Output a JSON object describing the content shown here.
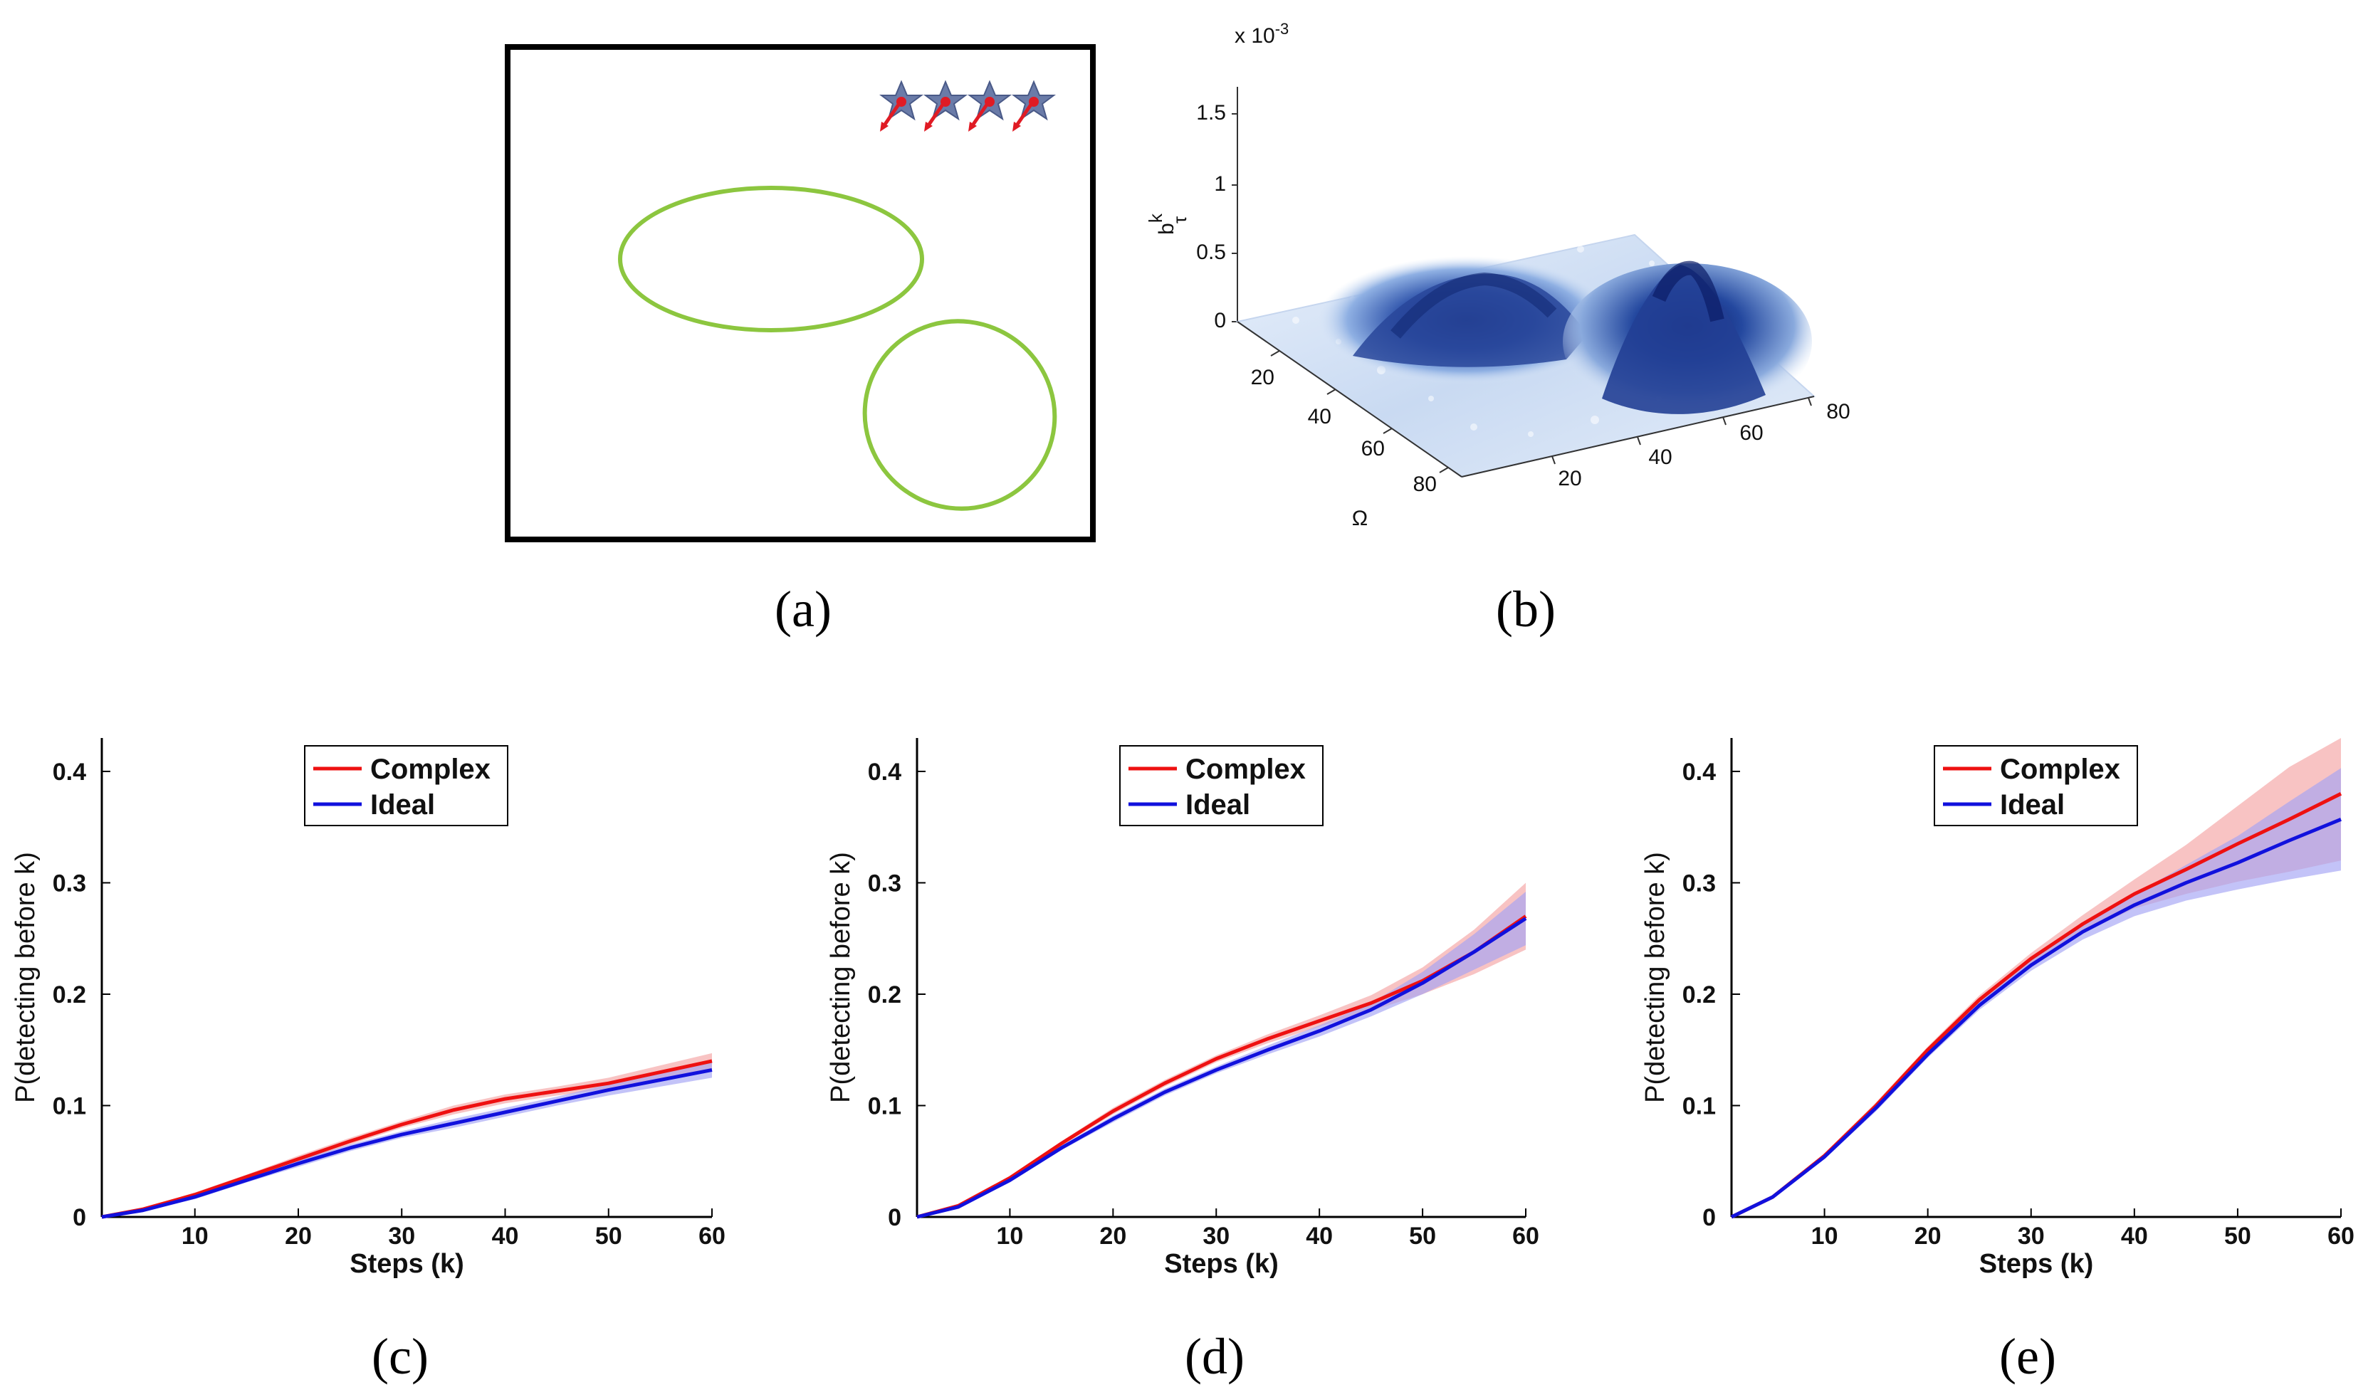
{
  "panels": {
    "a": "(a)",
    "b": "(b)",
    "c": "(c)",
    "d": "(d)",
    "e": "(e)"
  },
  "surface": {
    "zlabel": "b",
    "zlabel_sup": "k",
    "zlabel_sub": "τ",
    "exponent": "x 10",
    "exponent_sup": "-3",
    "zticks": [
      "0",
      "0.5",
      "1",
      "1.5"
    ],
    "y_ticks": [
      "20",
      "40",
      "60",
      "80"
    ],
    "x_ticks": [
      "20",
      "40",
      "60",
      "80"
    ],
    "omega_label": "Ω"
  },
  "colors": {
    "complex": "#ee1111",
    "ideal": "#1111dd",
    "complex_band": "#f5a3a3",
    "ideal_band": "#a3a3f5",
    "ellipse": "#8cc63f",
    "target": "#e01b24"
  },
  "chart_data": [
    {
      "type": "line",
      "id": "c",
      "xlabel": "Steps (k)",
      "ylabel": "P(detecting before k)",
      "xlim": [
        1,
        60
      ],
      "ylim": [
        0,
        0.43
      ],
      "xticks": [
        10,
        20,
        30,
        40,
        50,
        60
      ],
      "yticks": [
        0,
        0.1,
        0.2,
        0.3,
        0.4
      ],
      "x": [
        1,
        5,
        10,
        15,
        20,
        25,
        30,
        35,
        40,
        45,
        50,
        55,
        60
      ],
      "series": [
        {
          "name": "Complex",
          "values": [
            0,
            0.007,
            0.02,
            0.036,
            0.052,
            0.068,
            0.083,
            0.096,
            0.106,
            0.113,
            0.12,
            0.13,
            0.14
          ],
          "band": [
            0,
            0.001,
            0.002,
            0.002,
            0.003,
            0.003,
            0.003,
            0.004,
            0.004,
            0.004,
            0.005,
            0.006,
            0.007
          ]
        },
        {
          "name": "Ideal",
          "values": [
            0,
            0.006,
            0.018,
            0.033,
            0.048,
            0.062,
            0.074,
            0.084,
            0.094,
            0.104,
            0.114,
            0.123,
            0.132
          ],
          "band": [
            0,
            0.001,
            0.002,
            0.002,
            0.003,
            0.003,
            0.003,
            0.004,
            0.004,
            0.004,
            0.005,
            0.006,
            0.007
          ]
        }
      ]
    },
    {
      "type": "line",
      "id": "d",
      "xlabel": "Steps (k)",
      "ylabel": "P(detecting before k)",
      "xlim": [
        1,
        60
      ],
      "ylim": [
        0,
        0.43
      ],
      "xticks": [
        10,
        20,
        30,
        40,
        50,
        60
      ],
      "yticks": [
        0,
        0.1,
        0.2,
        0.3,
        0.4
      ],
      "x": [
        1,
        5,
        10,
        15,
        20,
        25,
        30,
        35,
        40,
        45,
        50,
        55,
        60
      ],
      "series": [
        {
          "name": "Complex",
          "values": [
            0,
            0.01,
            0.035,
            0.066,
            0.095,
            0.12,
            0.142,
            0.16,
            0.176,
            0.192,
            0.212,
            0.238,
            0.27
          ],
          "band": [
            0,
            0.001,
            0.002,
            0.002,
            0.003,
            0.003,
            0.003,
            0.004,
            0.005,
            0.007,
            0.012,
            0.02,
            0.03
          ]
        },
        {
          "name": "Ideal",
          "values": [
            0,
            0.009,
            0.033,
            0.062,
            0.088,
            0.112,
            0.132,
            0.15,
            0.167,
            0.186,
            0.21,
            0.238,
            0.268
          ],
          "band": [
            0,
            0.001,
            0.002,
            0.002,
            0.003,
            0.003,
            0.003,
            0.004,
            0.005,
            0.006,
            0.01,
            0.016,
            0.024
          ]
        }
      ]
    },
    {
      "type": "line",
      "id": "e",
      "xlabel": "Steps (k)",
      "ylabel": "P(detecting before k)",
      "xlim": [
        1,
        60
      ],
      "ylim": [
        0,
        0.43
      ],
      "xticks": [
        10,
        20,
        30,
        40,
        50,
        60
      ],
      "yticks": [
        0,
        0.1,
        0.2,
        0.3,
        0.4
      ],
      "x": [
        1,
        5,
        10,
        15,
        20,
        25,
        30,
        35,
        40,
        45,
        50,
        55,
        60
      ],
      "series": [
        {
          "name": "Complex",
          "values": [
            0,
            0.018,
            0.055,
            0.1,
            0.15,
            0.195,
            0.232,
            0.263,
            0.29,
            0.312,
            0.335,
            0.357,
            0.38
          ],
          "band": [
            0,
            0.001,
            0.002,
            0.003,
            0.003,
            0.004,
            0.005,
            0.008,
            0.013,
            0.022,
            0.034,
            0.047,
            0.06
          ]
        },
        {
          "name": "Ideal",
          "values": [
            0,
            0.018,
            0.054,
            0.098,
            0.146,
            0.19,
            0.226,
            0.256,
            0.28,
            0.3,
            0.318,
            0.338,
            0.357
          ],
          "band": [
            0,
            0.001,
            0.002,
            0.003,
            0.003,
            0.004,
            0.005,
            0.007,
            0.01,
            0.016,
            0.024,
            0.035,
            0.046
          ]
        }
      ]
    }
  ]
}
